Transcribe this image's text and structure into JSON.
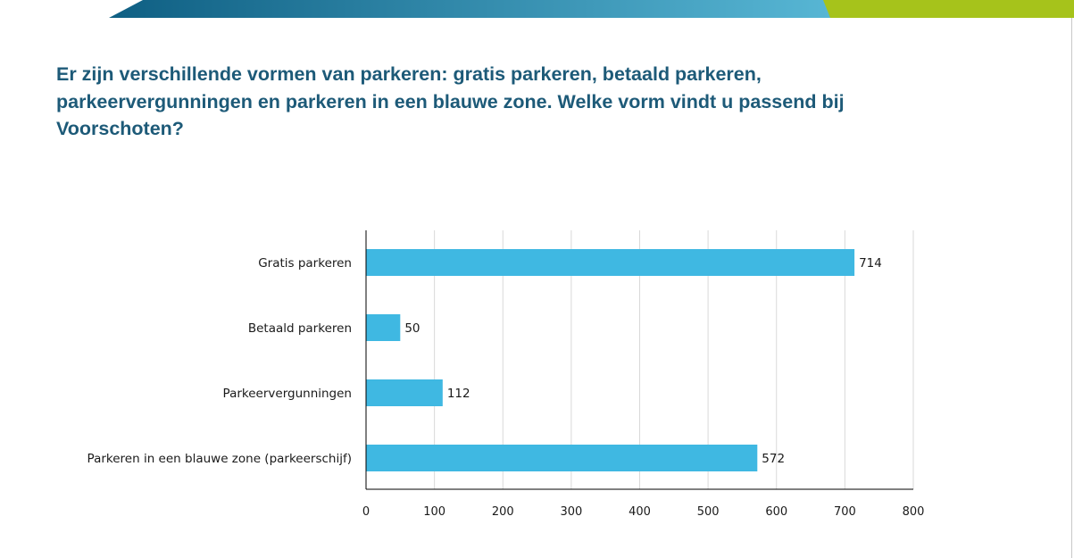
{
  "slide": {
    "title": "Er zijn verschillende vormen van parkeren: gratis parkeren, betaald parkeren, parkeervergunningen en parkeren in een blauwe zone. Welke vorm vindt u passend bij Voorschoten?"
  },
  "colors": {
    "title": "#1d5a78",
    "bar": "#3fb8e2",
    "band_dark": "#0f5f83",
    "band_light": "#57b6d4",
    "band_green": "#a6c31b",
    "gridline": "#d9d9d9",
    "axis": "#000000"
  },
  "chart_data": {
    "type": "bar",
    "orientation": "horizontal",
    "categories": [
      "Gratis parkeren",
      "Betaald parkeren",
      "Parkeervergunningen",
      "Parkeren in een blauwe zone (parkeerschijf)"
    ],
    "values": [
      714,
      50,
      112,
      572
    ],
    "value_labels": [
      "714",
      "50",
      "112",
      "572"
    ],
    "xlim": [
      0,
      800
    ],
    "xticks": [
      0,
      100,
      200,
      300,
      400,
      500,
      600,
      700,
      800
    ],
    "xtick_labels": [
      "0",
      "100",
      "200",
      "300",
      "400",
      "500",
      "600",
      "700",
      "800"
    ],
    "grid": true,
    "legend": "none"
  }
}
